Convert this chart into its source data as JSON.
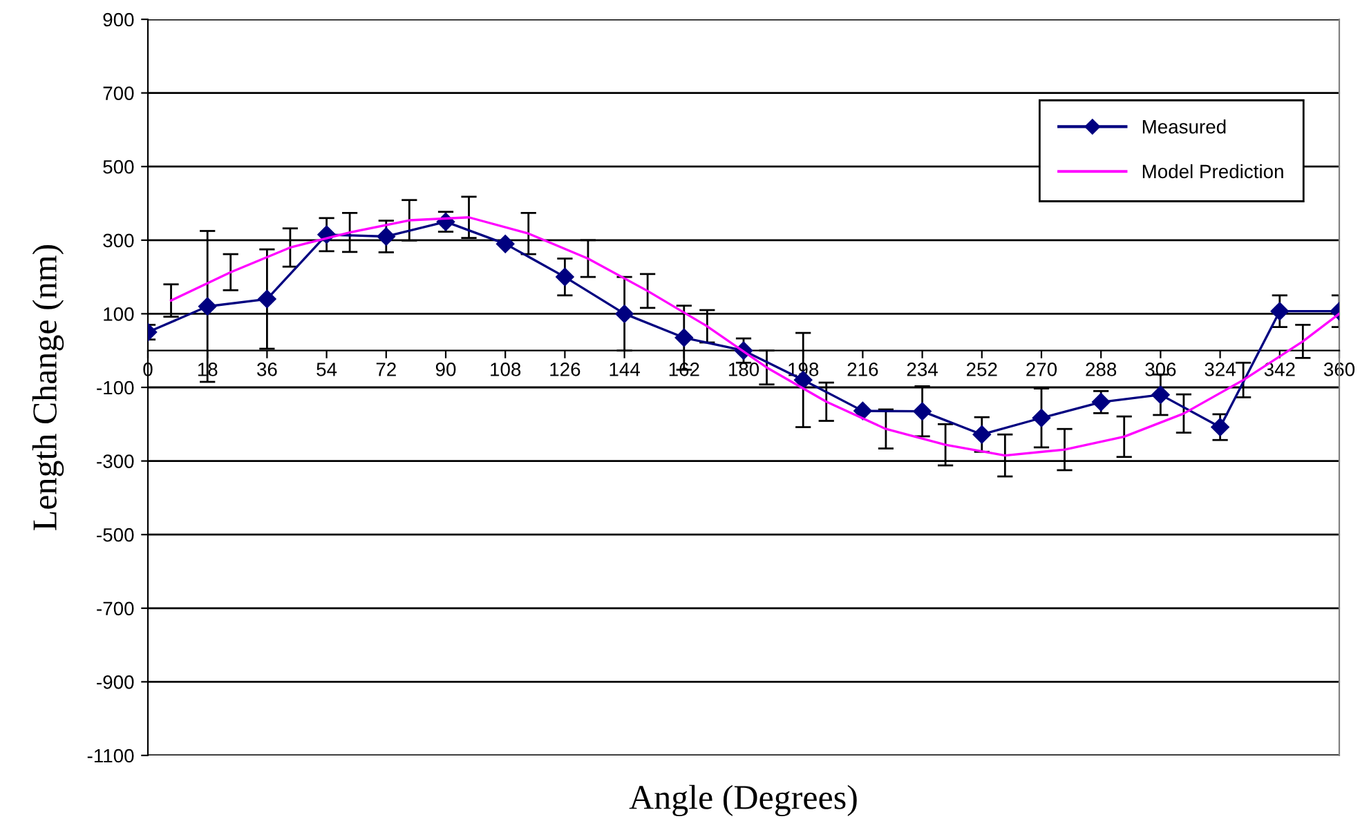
{
  "chart_data": {
    "type": "line",
    "xlabel": "Angle (Degrees)",
    "ylabel": "Length Change (nm)",
    "xlim": [
      0,
      360
    ],
    "xticks": [
      0,
      18,
      36,
      54,
      72,
      90,
      108,
      126,
      144,
      162,
      180,
      198,
      216,
      234,
      252,
      270,
      288,
      306,
      324,
      342,
      360
    ],
    "ylim": [
      -1100,
      900
    ],
    "yticks": [
      -1100,
      -900,
      -700,
      -500,
      -300,
      -100,
      100,
      300,
      500,
      700,
      900
    ],
    "grid": "y",
    "legend": "top right",
    "series": [
      {
        "name": "Measured",
        "color": "#000080",
        "marker": "diamond",
        "x": [
          0,
          18,
          36,
          54,
          72,
          90,
          108,
          126,
          144,
          162,
          180,
          198,
          216,
          234,
          252,
          270,
          288,
          306,
          324,
          342,
          360
        ],
        "values": [
          50,
          120,
          140,
          315,
          310,
          350,
          290,
          200,
          100,
          35,
          0,
          -80,
          -164,
          -165,
          -228,
          -183,
          -140,
          -120,
          -208,
          107,
          107
        ],
        "errors": [
          20,
          205,
          135,
          45,
          43,
          27,
          null,
          50,
          100,
          87,
          33,
          128,
          null,
          68,
          47,
          80,
          30,
          55,
          35,
          43,
          43
        ]
      },
      {
        "name": "Model Prediction",
        "color": "#ff00ff",
        "marker": "none",
        "x": [
          7,
          25,
          43,
          61,
          79,
          97,
          115,
          133,
          151,
          169,
          187,
          205,
          223,
          241,
          259,
          277,
          295,
          313,
          331,
          349,
          360
        ],
        "values": [
          136,
          213,
          280,
          321,
          354,
          362,
          318,
          250,
          162,
          66,
          -46,
          -139,
          -213,
          -256,
          -285,
          -269,
          -234,
          -171,
          -80,
          25,
          100
        ],
        "errors": [
          44,
          49,
          52,
          53,
          55,
          56,
          56,
          50,
          46,
          44,
          46,
          52,
          53,
          56,
          57,
          56,
          55,
          52,
          47,
          45,
          null
        ]
      }
    ]
  }
}
